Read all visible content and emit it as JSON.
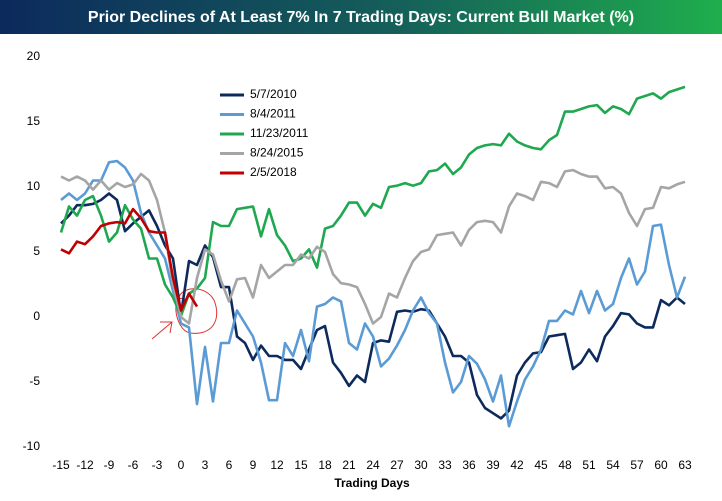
{
  "chart_data": {
    "type": "line",
    "title": "Prior Declines of At Least 7% In 7 Trading Days: Current Bull Market (%)",
    "x_label": "Trading Days",
    "x": [
      -15,
      -14,
      -13,
      -12,
      -11,
      -10,
      -9,
      -8,
      -7,
      -6,
      -5,
      -4,
      -3,
      -2,
      -1,
      0,
      1,
      2,
      3,
      4,
      5,
      6,
      7,
      8,
      9,
      10,
      11,
      12,
      13,
      14,
      15,
      16,
      17,
      18,
      19,
      20,
      21,
      22,
      23,
      24,
      25,
      26,
      27,
      28,
      29,
      30,
      31,
      32,
      33,
      34,
      35,
      36,
      37,
      38,
      39,
      40,
      41,
      42,
      43,
      44,
      45,
      46,
      47,
      48,
      49,
      50,
      51,
      52,
      53,
      54,
      55,
      56,
      57,
      58,
      59,
      60,
      61,
      62,
      63
    ],
    "series": [
      {
        "name": "5/7/2010",
        "color": "#0c2a5c",
        "values": [
          7.2,
          7.8,
          8.6,
          8.6,
          8.7,
          9.0,
          9.5,
          9.0,
          6.6,
          7.2,
          7.7,
          8.2,
          7.0,
          5.5,
          4.5,
          0.2,
          4.3,
          4.0,
          5.5,
          4.6,
          2.3,
          2.3,
          -1.5,
          -2.0,
          -3.3,
          -2.2,
          -3.0,
          -3.0,
          -3.3,
          -3.3,
          -4.0,
          -2.5,
          -1.0,
          -0.7,
          -3.5,
          -4.3,
          -5.3,
          -4.5,
          -5.0,
          -2.0,
          -1.8,
          -1.9,
          0.4,
          0.5,
          0.4,
          0.6,
          0.5,
          -0.5,
          -1.5,
          -3.0,
          -3.0,
          -3.5,
          -6.0,
          -7.0,
          -7.4,
          -7.8,
          -7.2,
          -4.5,
          -3.5,
          -2.8,
          -2.7,
          -1.5,
          -1.4,
          -1.3,
          -4.0,
          -3.5,
          -2.5,
          -3.4,
          -1.5,
          -0.7,
          0.3,
          0.2,
          -0.5,
          -0.8,
          -0.8,
          1.3,
          0.9,
          1.5,
          1.0
        ]
      },
      {
        "name": "8/4/2011",
        "color": "#5b9bd5",
        "values": [
          9.0,
          9.5,
          9.0,
          9.5,
          10.5,
          10.5,
          11.9,
          12.0,
          11.5,
          10.5,
          8.0,
          6.5,
          5.5,
          4.5,
          2.0,
          -0.5,
          -0.8,
          -6.7,
          -2.3,
          -6.5,
          -2.0,
          -2.0,
          0.5,
          -0.5,
          -1.5,
          -3.5,
          -6.4,
          -6.4,
          -2.0,
          -3.0,
          -1.0,
          -3.4,
          0.8,
          1.0,
          1.5,
          1.2,
          -2.0,
          -2.5,
          -0.5,
          -1.5,
          -3.8,
          -3.2,
          -2.2,
          -1.0,
          0.5,
          1.5,
          0.3,
          -0.5,
          -3.5,
          -5.8,
          -5.0,
          -3.0,
          -3.6,
          -4.8,
          -6.5,
          -4.5,
          -8.4,
          -6.5,
          -4.8,
          -3.8,
          -2.5,
          -0.3,
          -0.3,
          0.5,
          0.2,
          2.0,
          0.3,
          2.0,
          0.5,
          1.0,
          3.0,
          4.5,
          2.5,
          3.5,
          7.0,
          7.1,
          4.0,
          1.5,
          3.1
        ]
      },
      {
        "name": "11/23/2011",
        "color": "#1fa84f",
        "values": [
          6.5,
          8.5,
          7.8,
          9.0,
          9.3,
          7.8,
          5.8,
          6.5,
          8.6,
          7.5,
          6.8,
          4.5,
          4.5,
          2.5,
          1.5,
          0.1,
          1.8,
          2.2,
          3.0,
          7.3,
          7.0,
          7.0,
          8.3,
          8.4,
          8.5,
          6.2,
          8.3,
          6.3,
          5.5,
          4.3,
          4.5,
          5.2,
          3.8,
          6.8,
          7.0,
          7.8,
          8.8,
          8.8,
          7.8,
          8.7,
          8.4,
          10.0,
          10.1,
          10.3,
          10.1,
          10.3,
          11.2,
          11.3,
          11.8,
          11.0,
          11.5,
          12.5,
          13.0,
          13.2,
          13.3,
          13.2,
          14.1,
          13.5,
          13.2,
          13.0,
          12.9,
          13.6,
          14.0,
          15.8,
          15.8,
          16.0,
          16.2,
          16.3,
          15.7,
          16.2,
          16.0,
          15.6,
          16.8,
          17.0,
          17.2,
          16.8,
          17.3,
          17.5,
          17.7
        ]
      },
      {
        "name": "8/24/2015",
        "color": "#a5a5a5",
        "values": [
          10.8,
          10.5,
          10.8,
          10.5,
          9.8,
          10.5,
          9.8,
          10.3,
          10.0,
          10.2,
          11.0,
          10.5,
          9.0,
          6.5,
          2.5,
          0.0,
          -0.5,
          3.0,
          5.2,
          4.8,
          2.8,
          1.2,
          2.9,
          3.0,
          1.5,
          4.0,
          3.0,
          3.5,
          4.0,
          4.0,
          4.8,
          4.5,
          5.4,
          5.0,
          3.3,
          2.6,
          2.5,
          2.3,
          1.0,
          -0.5,
          0.0,
          1.8,
          1.5,
          3.0,
          4.3,
          5.0,
          5.2,
          6.3,
          6.4,
          6.5,
          5.5,
          6.7,
          7.3,
          7.4,
          7.3,
          6.5,
          8.5,
          9.5,
          9.3,
          9.0,
          10.4,
          10.3,
          10.0,
          11.2,
          11.3,
          11.0,
          10.8,
          10.8,
          9.9,
          10.0,
          9.5,
          8.0,
          7.0,
          8.3,
          8.4,
          10.0,
          9.9,
          10.2,
          10.4
        ]
      },
      {
        "name": "2/5/2018",
        "color": "#c00000",
        "values": [
          5.2,
          4.9,
          5.8,
          5.6,
          6.2,
          7.0,
          7.2,
          7.3,
          7.2,
          8.3,
          7.6,
          6.6,
          6.5,
          6.5,
          3.0,
          0.5,
          1.8,
          0.8,
          null,
          null,
          null,
          null,
          null,
          null,
          null,
          null,
          null,
          null,
          null,
          null,
          null,
          null,
          null,
          null,
          null,
          null,
          null,
          null,
          null,
          null,
          null,
          null,
          null,
          null,
          null,
          null,
          null,
          null,
          null,
          null,
          null,
          null,
          null,
          null,
          null,
          null,
          null,
          null,
          null,
          null,
          null,
          null,
          null,
          null,
          null,
          null,
          null,
          null,
          null,
          null,
          null,
          null,
          null,
          null,
          null,
          null,
          null,
          null,
          null
        ]
      }
    ],
    "xlim": [
      -16,
      65
    ],
    "xticks": [
      -15,
      -12,
      -9,
      -6,
      -3,
      0,
      3,
      6,
      9,
      12,
      15,
      18,
      21,
      24,
      27,
      30,
      33,
      36,
      39,
      42,
      45,
      48,
      51,
      54,
      57,
      60,
      63
    ],
    "ylim": [
      -10,
      20
    ],
    "yticks": [
      -10,
      -5,
      0,
      5,
      10,
      15,
      20
    ],
    "grid": false
  }
}
